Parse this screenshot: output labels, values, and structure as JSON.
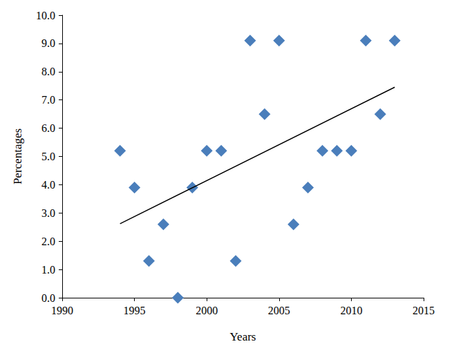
{
  "chart_data": {
    "type": "scatter",
    "x_label": "Years",
    "y_label": "Percentages",
    "xlim": [
      1990,
      2015
    ],
    "xticks": [
      1990,
      1995,
      2000,
      2005,
      2010,
      2015
    ],
    "ylim": [
      0,
      10
    ],
    "yticks": [
      {
        "value": 0,
        "label": "0.0"
      },
      {
        "value": 1,
        "label": "1.0"
      },
      {
        "value": 2,
        "label": "2.0"
      },
      {
        "value": 3,
        "label": "3.0"
      },
      {
        "value": 4,
        "label": "4.0"
      },
      {
        "value": 5,
        "label": "5.0"
      },
      {
        "value": 6,
        "label": "6.0"
      },
      {
        "value": 7,
        "label": "7.0"
      },
      {
        "value": 8,
        "label": "8.0"
      },
      {
        "value": 9,
        "label": "9.0"
      },
      {
        "value": 10,
        "label": "10.0"
      }
    ],
    "grid": false,
    "series": [
      {
        "type": "scatter",
        "color": "#4a7ebb",
        "marker": "diamond",
        "x": [
          1994,
          1995,
          1996,
          1997,
          1998,
          1999,
          2000,
          2001,
          2002,
          2003,
          2004,
          2005,
          2006,
          2007,
          2008,
          2009,
          2010,
          2011,
          2012,
          2013
        ],
        "values": [
          5.2,
          3.9,
          1.3,
          2.6,
          0.0,
          3.9,
          5.2,
          5.2,
          1.3,
          9.1,
          6.5,
          9.1,
          2.6,
          3.9,
          5.2,
          5.2,
          5.2,
          9.1,
          6.5,
          9.1
        ]
      },
      {
        "type": "line",
        "color": "#000000",
        "line_style": "solid",
        "x": [
          1994,
          2013
        ],
        "values": [
          2.62,
          7.45
        ]
      }
    ]
  }
}
